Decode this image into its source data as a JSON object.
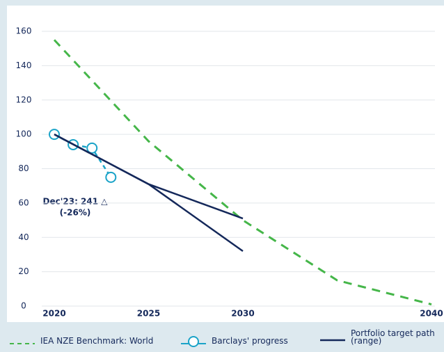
{
  "chart_data": {
    "type": "line",
    "xlim": [
      2020,
      2040
    ],
    "xticks": [
      2020,
      2025,
      2030,
      2040
    ],
    "ylim": [
      0,
      160
    ],
    "yticks": [
      0,
      20,
      40,
      60,
      80,
      100,
      120,
      140,
      160
    ],
    "grid": true,
    "legend": "bottom",
    "series": [
      {
        "name": "IEA NZE Benchmark: World",
        "color": "#45b649",
        "style": "dashed",
        "x": [
          2020,
          2025,
          2030,
          2035,
          2040
        ],
        "values": [
          155,
          96,
          50,
          15,
          1
        ]
      },
      {
        "name": "Barclays' progress",
        "color": "#1aa3c8",
        "style": "markers",
        "x": [
          2020,
          2021,
          2022,
          2023
        ],
        "values": [
          100,
          94,
          92,
          75
        ]
      },
      {
        "name": "Portfolio target path (range)",
        "color": "#14285a",
        "style": "range",
        "x": [
          2020,
          2025,
          2030
        ],
        "values": [
          100,
          71,
          51
        ],
        "lower": [
          100,
          71,
          32
        ]
      }
    ],
    "annotations": [
      "Dec'23: 241 △",
      "(-26%)"
    ]
  }
}
